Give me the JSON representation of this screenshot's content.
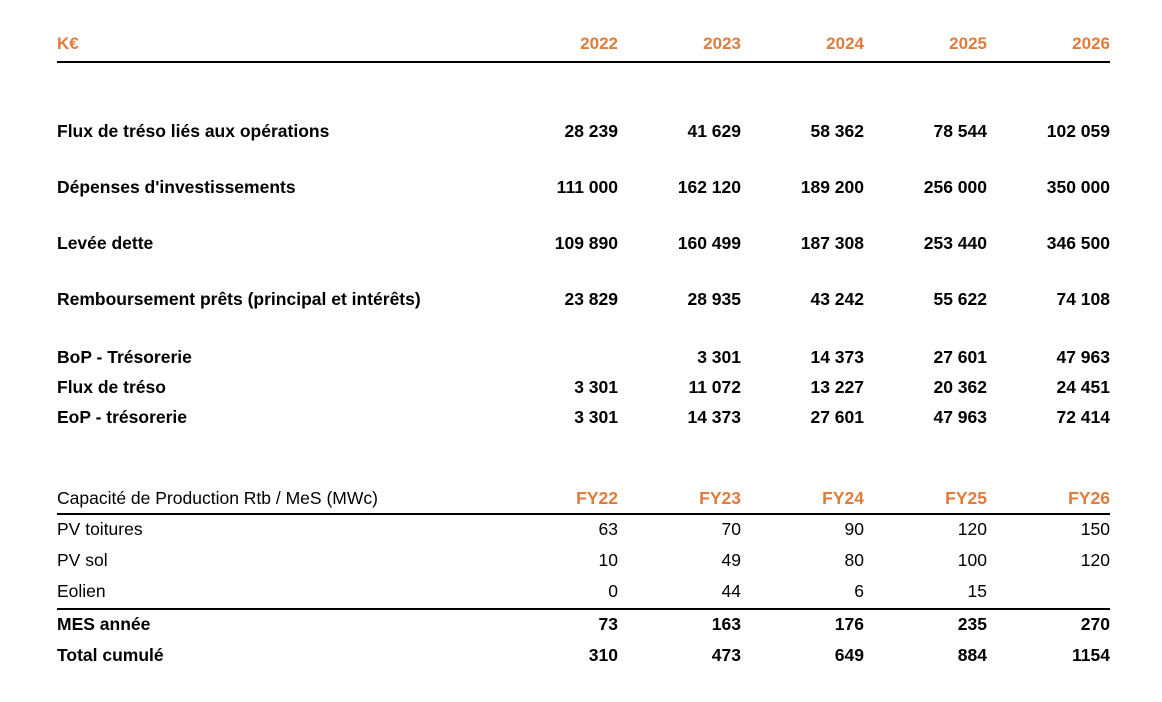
{
  "accent_color": "#DF7B3B",
  "cashflow": {
    "unit_label": "K€",
    "columns": [
      "2022",
      "2023",
      "2024",
      "2025",
      "2026"
    ],
    "rows": [
      {
        "label": "Flux de tréso liés aux opérations",
        "values": [
          "28 239",
          "41 629",
          "58 362",
          "78 544",
          "102 059"
        ]
      },
      {
        "label": "Dépenses d'investissements",
        "values": [
          "111 000",
          "162 120",
          "189 200",
          "256 000",
          "350 000"
        ]
      },
      {
        "label": "Levée dette",
        "values": [
          "109 890",
          "160 499",
          "187 308",
          "253 440",
          "346 500"
        ]
      },
      {
        "label": "Remboursement prêts (principal et intérêts)",
        "values": [
          "23 829",
          "28 935",
          "43 242",
          "55 622",
          "74 108"
        ]
      },
      {
        "label": "BoP - Trésorerie",
        "values": [
          "",
          "3 301",
          "14 373",
          "27 601",
          "47 963"
        ]
      },
      {
        "label": "Flux de tréso",
        "values": [
          "3 301",
          "11 072",
          "13 227",
          "20 362",
          "24 451"
        ]
      },
      {
        "label": "EoP - trésorerie",
        "values": [
          "3 301",
          "14 373",
          "27 601",
          "47 963",
          "72 414"
        ]
      }
    ]
  },
  "capacity": {
    "title": "Capacité de Production Rtb / MeS (MWc)",
    "columns": [
      "FY22",
      "FY23",
      "FY24",
      "FY25",
      "FY26"
    ],
    "rows": [
      {
        "label": "PV toitures",
        "values": [
          "63",
          "70",
          "90",
          "120",
          "150"
        ]
      },
      {
        "label": "PV sol",
        "values": [
          "10",
          "49",
          "80",
          "100",
          "120"
        ]
      },
      {
        "label": "Eolien",
        "values": [
          "0",
          "44",
          "6",
          "15",
          ""
        ]
      },
      {
        "label": "MES année",
        "values": [
          "73",
          "163",
          "176",
          "235",
          "270"
        ]
      },
      {
        "label": "Total cumulé",
        "values": [
          "310",
          "473",
          "649",
          "884",
          "1154"
        ]
      }
    ]
  }
}
